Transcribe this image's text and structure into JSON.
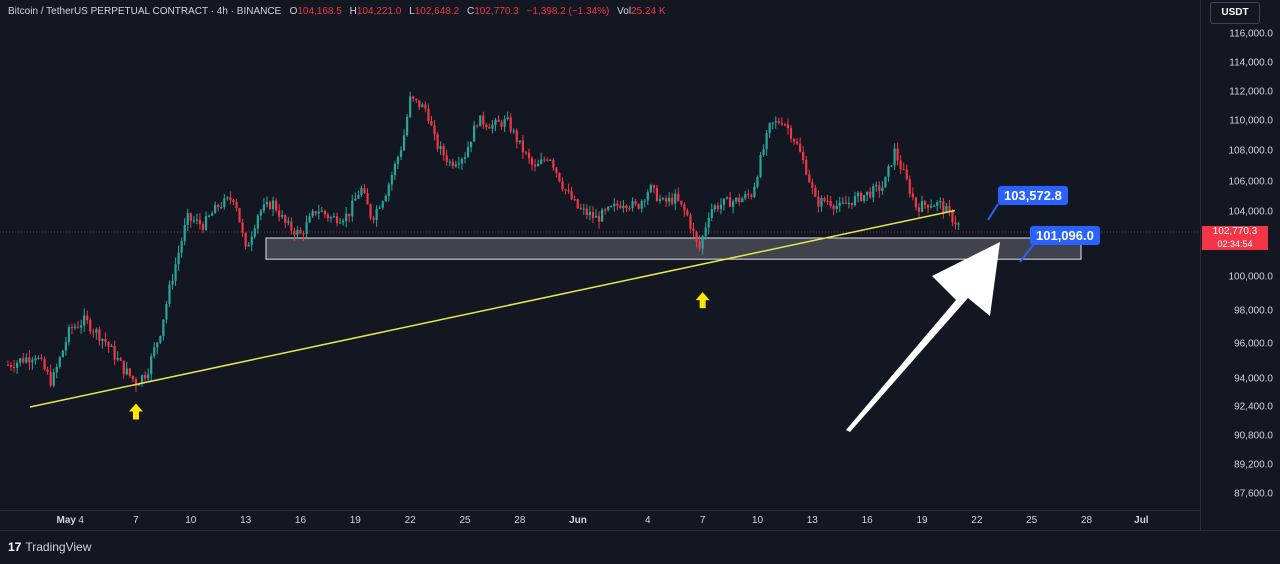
{
  "legend": {
    "symbol": "Bitcoin / TetherUS PERPETUAL CONTRACT · 4h · BINANCE",
    "open_label": "O",
    "open": "104,168.5",
    "high_label": "H",
    "high": "104,221.0",
    "low_label": "L",
    "low": "102,648.2",
    "close_label": "C",
    "close": "102,770.3",
    "change": "−1,398.2 (−1.34%)",
    "vol_label": "Vol",
    "volume": "25.24 K"
  },
  "currency": "USDT",
  "price_tag": {
    "price": "102,770.3",
    "countdown": "02:34:54"
  },
  "callouts": {
    "upper": "103,572.8",
    "lower": "101,096.0"
  },
  "footer": {
    "logo_glyph": "17",
    "brand": "TradingView"
  },
  "colors": {
    "up": "#26a69a",
    "down": "#f23645",
    "background": "#131722",
    "trendline": "#e8e84a",
    "zone": "#e0e3eb",
    "callout": "#2962ff"
  },
  "chart_data": {
    "type": "candlestick",
    "title": "Bitcoin / TetherUS PERPETUAL CONTRACT · 4h · BINANCE",
    "ylim": [
      86500,
      117500
    ],
    "y_ticks": [
      {
        "v": 116000,
        "label": "116,000.0"
      },
      {
        "v": 114000,
        "label": "114,000.0"
      },
      {
        "v": 112000,
        "label": "112,000.0"
      },
      {
        "v": 110000,
        "label": "110,000.0"
      },
      {
        "v": 108000,
        "label": "108,000.0"
      },
      {
        "v": 106000,
        "label": "106,000.0"
      },
      {
        "v": 104000,
        "label": "104,000.0"
      },
      {
        "v": 100000,
        "label": "100,000.0"
      },
      {
        "v": 98000,
        "label": "98,000.0"
      },
      {
        "v": 96000,
        "label": "96,000.0"
      },
      {
        "v": 94000,
        "label": "94,000.0"
      },
      {
        "v": 92400,
        "label": "92,400.0"
      },
      {
        "v": 90800,
        "label": "90,800.0"
      },
      {
        "v": 89200,
        "label": "89,200.0"
      },
      {
        "v": 87600,
        "label": "87,600.0"
      }
    ],
    "x_ticks": [
      {
        "day": 1,
        "label": "May",
        "month": true
      },
      {
        "day": 4,
        "label": "4"
      },
      {
        "day": 7,
        "label": "7"
      },
      {
        "day": 10,
        "label": "10"
      },
      {
        "day": 13,
        "label": "13"
      },
      {
        "day": 16,
        "label": "16"
      },
      {
        "day": 19,
        "label": "19"
      },
      {
        "day": 22,
        "label": "22"
      },
      {
        "day": 25,
        "label": "25"
      },
      {
        "day": 28,
        "label": "28"
      },
      {
        "day": 32,
        "label": "Jun",
        "month": true
      },
      {
        "day": 35,
        "label": "4"
      },
      {
        "day": 38,
        "label": "7"
      },
      {
        "day": 41,
        "label": "10"
      },
      {
        "day": 44,
        "label": "13"
      },
      {
        "day": 47,
        "label": "16"
      },
      {
        "day": 50,
        "label": "19"
      },
      {
        "day": 53,
        "label": "22"
      },
      {
        "day": 56,
        "label": "25"
      },
      {
        "day": 59,
        "label": "28"
      },
      {
        "day": 62,
        "label": "Jul",
        "month": true
      }
    ],
    "x_unit": "days since 2025-04-30 (May 1 = 1, Jun 1 = 32)",
    "close_path": [
      [
        0.0,
        94800
      ],
      [
        1.5,
        95400
      ],
      [
        2.4,
        93800
      ],
      [
        3.4,
        96900
      ],
      [
        4.2,
        97400
      ],
      [
        5.3,
        96200
      ],
      [
        6.3,
        94600
      ],
      [
        7.0,
        93800
      ],
      [
        7.6,
        94400
      ],
      [
        8.3,
        96600
      ],
      [
        8.9,
        99600
      ],
      [
        9.8,
        103600
      ],
      [
        10.7,
        103200
      ],
      [
        11.5,
        104400
      ],
      [
        12.4,
        105000
      ],
      [
        13.0,
        101600
      ],
      [
        13.7,
        104000
      ],
      [
        14.5,
        104600
      ],
      [
        15.2,
        103200
      ],
      [
        16.0,
        102600
      ],
      [
        16.9,
        104200
      ],
      [
        17.7,
        103600
      ],
      [
        18.6,
        103800
      ],
      [
        19.3,
        105600
      ],
      [
        19.9,
        103600
      ],
      [
        20.7,
        105400
      ],
      [
        21.6,
        108600
      ],
      [
        22.0,
        111500
      ],
      [
        22.9,
        110800
      ],
      [
        23.4,
        108500
      ],
      [
        24.2,
        107200
      ],
      [
        25.0,
        107800
      ],
      [
        25.7,
        110100
      ],
      [
        26.5,
        109700
      ],
      [
        27.3,
        110000
      ],
      [
        28.0,
        108400
      ],
      [
        28.8,
        106800
      ],
      [
        29.6,
        107800
      ],
      [
        30.4,
        105600
      ],
      [
        31.2,
        104200
      ],
      [
        32.2,
        103600
      ],
      [
        32.9,
        104100
      ],
      [
        33.7,
        104700
      ],
      [
        34.4,
        104300
      ],
      [
        35.1,
        105600
      ],
      [
        35.8,
        104600
      ],
      [
        36.5,
        104900
      ],
      [
        37.2,
        103700
      ],
      [
        37.8,
        101600
      ],
      [
        38.4,
        104200
      ],
      [
        39.2,
        104600
      ],
      [
        40.0,
        104800
      ],
      [
        40.7,
        105200
      ],
      [
        41.2,
        107600
      ],
      [
        41.7,
        109700
      ],
      [
        42.4,
        110100
      ],
      [
        43.1,
        108600
      ],
      [
        43.7,
        106700
      ],
      [
        44.2,
        104600
      ],
      [
        44.8,
        104800
      ],
      [
        45.5,
        104300
      ],
      [
        46.4,
        104900
      ],
      [
        47.2,
        105300
      ],
      [
        47.9,
        105700
      ],
      [
        48.5,
        108000
      ],
      [
        49.1,
        106200
      ],
      [
        49.7,
        104300
      ],
      [
        50.4,
        104600
      ],
      [
        51.0,
        104500
      ],
      [
        51.6,
        103700
      ],
      [
        52.0,
        103200
      ]
    ],
    "annotations": {
      "support_zone": [
        101096,
        102400
      ],
      "trendline": [
        [
          1.2,
          92400
        ],
        [
          51.8,
          104100
        ]
      ],
      "arrows_up": [
        [
          7.0,
          92600
        ],
        [
          38.0,
          99100
        ]
      ]
    }
  }
}
